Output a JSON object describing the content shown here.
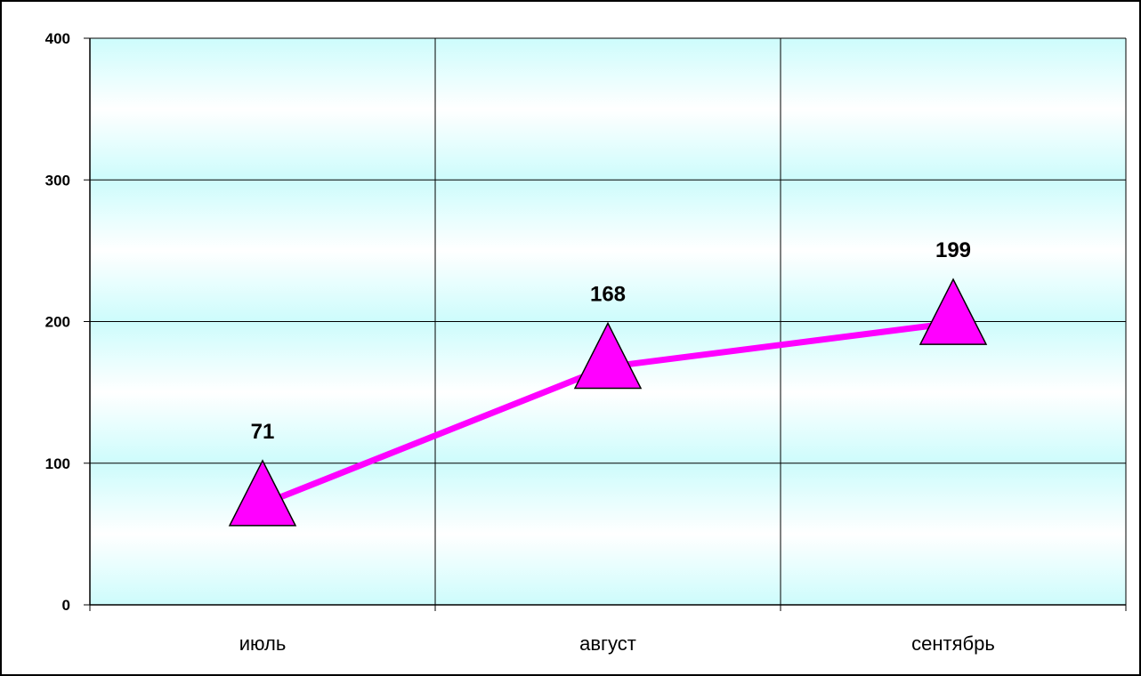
{
  "chart_data": {
    "type": "line",
    "categories": [
      "июль",
      "август",
      "сентябрь"
    ],
    "series": [
      {
        "values": [
          71,
          168,
          199
        ],
        "color": "#ff00ff",
        "marker": "triangle"
      }
    ],
    "ylim": [
      0,
      400
    ],
    "yticks": [
      0,
      100,
      200,
      300,
      400
    ],
    "grid": true,
    "legend": "none",
    "colors": {
      "plot_gradient_top": "#cdfcfc",
      "plot_gradient_bottom": "#ffffff",
      "line": "#ff00ff"
    }
  }
}
